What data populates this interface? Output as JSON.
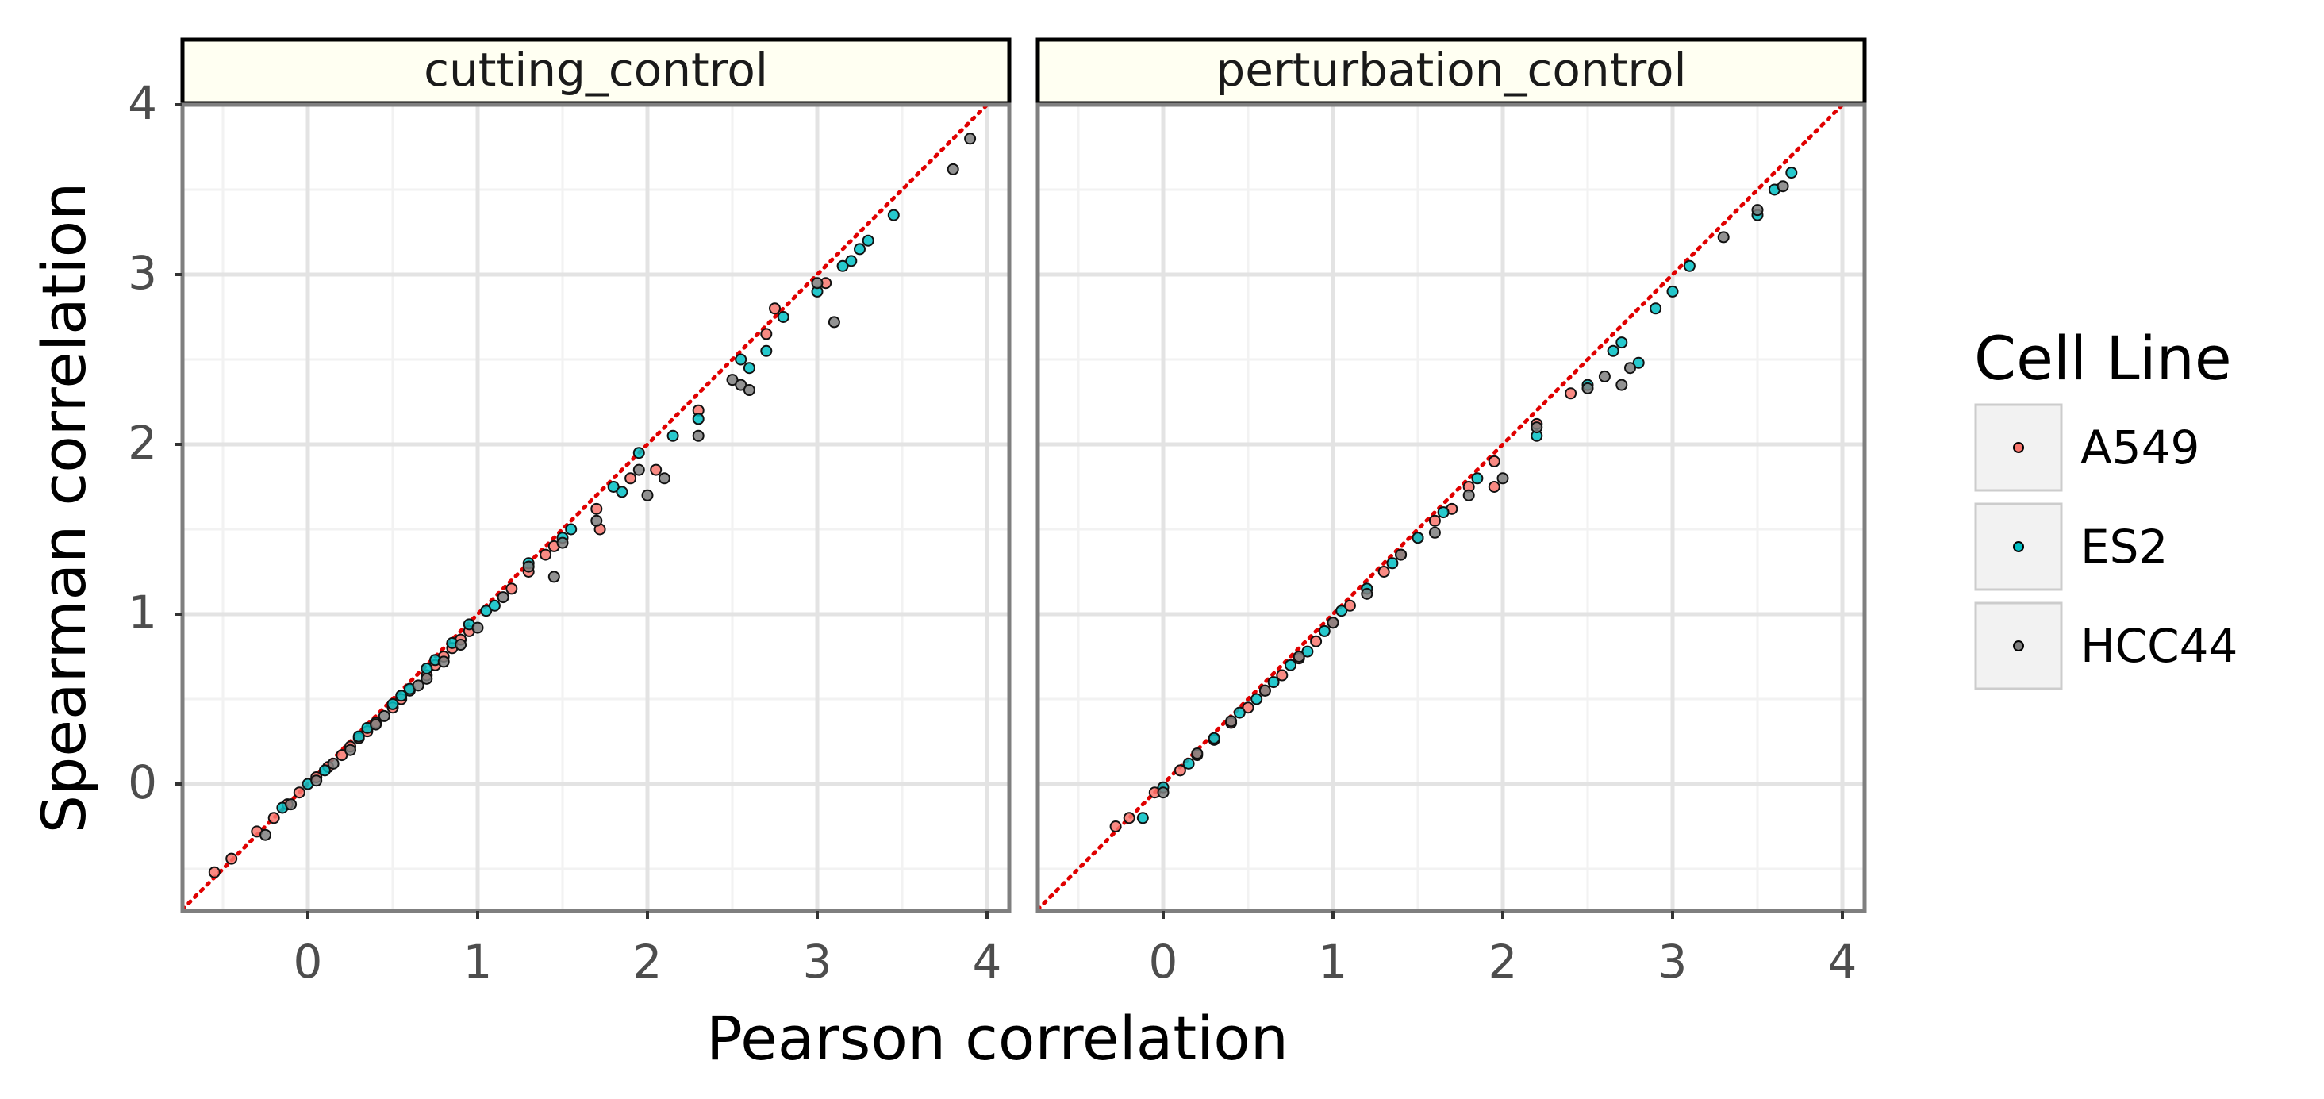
{
  "chart_data": {
    "type": "scatter",
    "facet_labels": [
      "cutting_control",
      "perturbation_control"
    ],
    "xlabel": "Pearson correlation",
    "ylabel": "Spearman correlation",
    "xlim": [
      -0.75,
      4.1
    ],
    "ylim": [
      -0.75,
      4.1
    ],
    "x_ticks": [
      "0",
      "1",
      "2",
      "3",
      "4"
    ],
    "y_ticks": [
      "0",
      "1",
      "2",
      "3",
      "4"
    ],
    "grid": true,
    "reference_line": {
      "slope": 1,
      "intercept": 0,
      "style": "dotted",
      "color": "#e00000"
    },
    "legend": {
      "title": "Cell Line",
      "position": "right"
    },
    "series": [
      {
        "name": "A549",
        "color": "#f8766d"
      },
      {
        "name": "ES2",
        "color": "#00bfc4"
      },
      {
        "name": "HCC44",
        "color": "#7f7f7f"
      }
    ],
    "panels": [
      {
        "label": "cutting_control",
        "points": {
          "A549": [
            [
              -0.55,
              -0.52
            ],
            [
              -0.45,
              -0.44
            ],
            [
              -0.3,
              -0.28
            ],
            [
              -0.2,
              -0.2
            ],
            [
              -0.12,
              -0.12
            ],
            [
              -0.05,
              -0.05
            ],
            [
              0.05,
              0.04
            ],
            [
              0.12,
              0.1
            ],
            [
              0.2,
              0.17
            ],
            [
              0.25,
              0.22
            ],
            [
              0.3,
              0.27
            ],
            [
              0.35,
              0.31
            ],
            [
              0.4,
              0.36
            ],
            [
              0.5,
              0.45
            ],
            [
              0.55,
              0.5
            ],
            [
              0.6,
              0.55
            ],
            [
              0.7,
              0.64
            ],
            [
              0.75,
              0.7
            ],
            [
              0.8,
              0.75
            ],
            [
              0.85,
              0.8
            ],
            [
              0.9,
              0.85
            ],
            [
              0.95,
              0.9
            ],
            [
              1.2,
              1.15
            ],
            [
              1.3,
              1.25
            ],
            [
              1.4,
              1.35
            ],
            [
              1.45,
              1.4
            ],
            [
              1.7,
              1.62
            ],
            [
              1.72,
              1.5
            ],
            [
              1.9,
              1.8
            ],
            [
              2.05,
              1.85
            ],
            [
              2.3,
              2.2
            ],
            [
              2.7,
              2.65
            ],
            [
              2.75,
              2.8
            ],
            [
              3.05,
              2.95
            ]
          ],
          "ES2": [
            [
              -0.15,
              -0.14
            ],
            [
              0.0,
              0.0
            ],
            [
              0.1,
              0.08
            ],
            [
              0.3,
              0.28
            ],
            [
              0.35,
              0.33
            ],
            [
              0.5,
              0.47
            ],
            [
              0.55,
              0.52
            ],
            [
              0.6,
              0.56
            ],
            [
              0.7,
              0.68
            ],
            [
              0.75,
              0.73
            ],
            [
              0.85,
              0.83
            ],
            [
              0.95,
              0.94
            ],
            [
              1.05,
              1.02
            ],
            [
              1.1,
              1.05
            ],
            [
              1.3,
              1.3
            ],
            [
              1.5,
              1.45
            ],
            [
              1.55,
              1.5
            ],
            [
              1.8,
              1.75
            ],
            [
              1.85,
              1.72
            ],
            [
              1.95,
              1.95
            ],
            [
              2.15,
              2.05
            ],
            [
              2.3,
              2.15
            ],
            [
              2.55,
              2.5
            ],
            [
              2.6,
              2.45
            ],
            [
              2.7,
              2.55
            ],
            [
              2.8,
              2.75
            ],
            [
              3.0,
              2.9
            ],
            [
              3.15,
              3.05
            ],
            [
              3.2,
              3.08
            ],
            [
              3.25,
              3.15
            ],
            [
              3.3,
              3.2
            ],
            [
              3.45,
              3.35
            ]
          ],
          "HCC44": [
            [
              -0.25,
              -0.3
            ],
            [
              -0.1,
              -0.12
            ],
            [
              0.05,
              0.02
            ],
            [
              0.15,
              0.12
            ],
            [
              0.25,
              0.2
            ],
            [
              0.4,
              0.35
            ],
            [
              0.45,
              0.4
            ],
            [
              0.65,
              0.58
            ],
            [
              0.7,
              0.62
            ],
            [
              0.8,
              0.72
            ],
            [
              0.9,
              0.82
            ],
            [
              1.0,
              0.92
            ],
            [
              1.15,
              1.1
            ],
            [
              1.3,
              1.28
            ],
            [
              1.45,
              1.22
            ],
            [
              1.5,
              1.42
            ],
            [
              1.7,
              1.55
            ],
            [
              1.95,
              1.85
            ],
            [
              2.0,
              1.7
            ],
            [
              2.1,
              1.8
            ],
            [
              2.3,
              2.05
            ],
            [
              2.5,
              2.38
            ],
            [
              2.55,
              2.35
            ],
            [
              2.6,
              2.32
            ],
            [
              3.0,
              2.95
            ],
            [
              3.1,
              2.72
            ],
            [
              3.8,
              3.62
            ],
            [
              3.9,
              3.8
            ]
          ]
        }
      },
      {
        "label": "perturbation_control",
        "points": {
          "A549": [
            [
              -0.28,
              -0.25
            ],
            [
              -0.2,
              -0.2
            ],
            [
              -0.05,
              -0.05
            ],
            [
              0.1,
              0.08
            ],
            [
              0.2,
              0.17
            ],
            [
              0.3,
              0.26
            ],
            [
              0.4,
              0.36
            ],
            [
              0.5,
              0.45
            ],
            [
              0.6,
              0.55
            ],
            [
              0.7,
              0.64
            ],
            [
              0.8,
              0.74
            ],
            [
              0.9,
              0.84
            ],
            [
              1.0,
              0.95
            ],
            [
              1.1,
              1.05
            ],
            [
              1.2,
              1.15
            ],
            [
              1.3,
              1.25
            ],
            [
              1.4,
              1.35
            ],
            [
              1.5,
              1.45
            ],
            [
              1.6,
              1.55
            ],
            [
              1.7,
              1.62
            ],
            [
              1.8,
              1.75
            ],
            [
              1.95,
              1.75
            ],
            [
              1.95,
              1.9
            ],
            [
              2.2,
              2.12
            ],
            [
              2.4,
              2.3
            ]
          ],
          "ES2": [
            [
              -0.12,
              -0.2
            ],
            [
              0.0,
              -0.02
            ],
            [
              0.15,
              0.12
            ],
            [
              0.3,
              0.27
            ],
            [
              0.45,
              0.42
            ],
            [
              0.55,
              0.5
            ],
            [
              0.65,
              0.6
            ],
            [
              0.75,
              0.7
            ],
            [
              0.85,
              0.78
            ],
            [
              0.95,
              0.9
            ],
            [
              1.05,
              1.02
            ],
            [
              1.2,
              1.15
            ],
            [
              1.35,
              1.3
            ],
            [
              1.5,
              1.45
            ],
            [
              1.65,
              1.6
            ],
            [
              1.85,
              1.8
            ],
            [
              2.2,
              2.05
            ],
            [
              2.5,
              2.35
            ],
            [
              2.65,
              2.55
            ],
            [
              2.7,
              2.6
            ],
            [
              2.8,
              2.48
            ],
            [
              2.9,
              2.8
            ],
            [
              3.0,
              2.9
            ],
            [
              3.1,
              3.05
            ],
            [
              3.5,
              3.35
            ],
            [
              3.6,
              3.5
            ],
            [
              3.7,
              3.6
            ]
          ],
          "HCC44": [
            [
              0.0,
              -0.05
            ],
            [
              0.2,
              0.18
            ],
            [
              0.4,
              0.37
            ],
            [
              0.6,
              0.55
            ],
            [
              0.8,
              0.75
            ],
            [
              1.0,
              0.95
            ],
            [
              1.2,
              1.12
            ],
            [
              1.4,
              1.35
            ],
            [
              1.6,
              1.48
            ],
            [
              1.8,
              1.7
            ],
            [
              2.0,
              1.8
            ],
            [
              2.2,
              2.1
            ],
            [
              2.5,
              2.33
            ],
            [
              2.6,
              2.4
            ],
            [
              2.7,
              2.35
            ],
            [
              2.75,
              2.45
            ],
            [
              3.3,
              3.22
            ],
            [
              3.5,
              3.38
            ],
            [
              3.65,
              3.52
            ]
          ]
        }
      }
    ]
  }
}
